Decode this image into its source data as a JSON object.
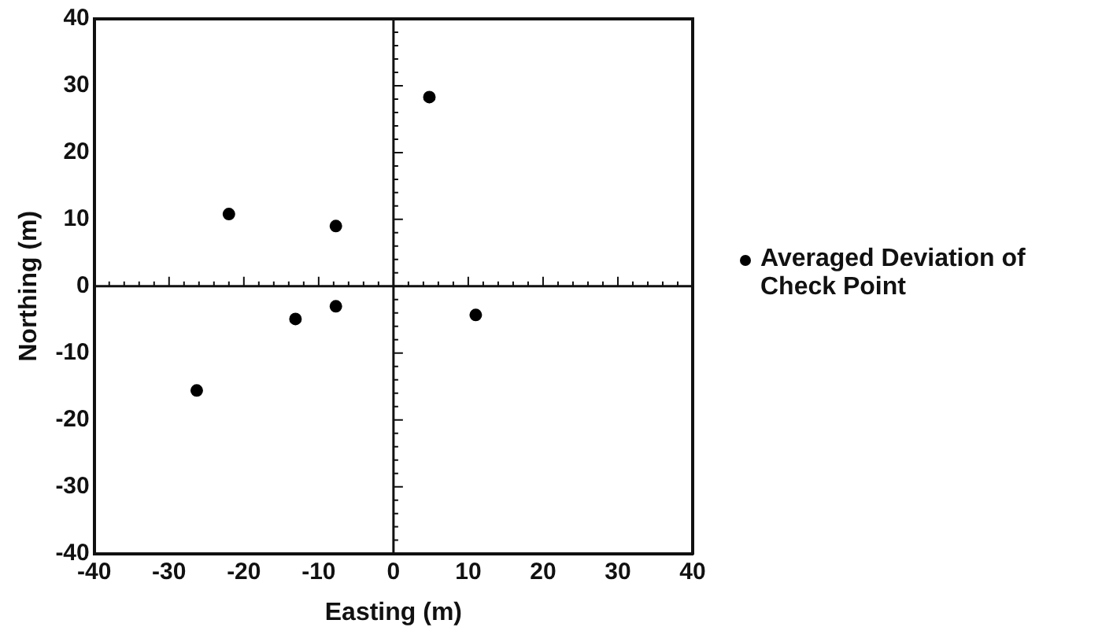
{
  "chart_data": {
    "type": "scatter",
    "xlabel": "Easting (m)",
    "ylabel": "Northing (m)",
    "xlim": [
      -40,
      40
    ],
    "ylim": [
      -40,
      40
    ],
    "xticks": [
      -40,
      -30,
      -20,
      -10,
      0,
      10,
      20,
      30,
      40
    ],
    "yticks": [
      -40,
      -30,
      -20,
      -10,
      0,
      10,
      20,
      30,
      40
    ],
    "marker": "circle",
    "legend": "right",
    "series": [
      {
        "name": "Averaged Deviation of Check Point",
        "color": "#000000",
        "x": [
          4.8,
          -22,
          -7.7,
          -13.1,
          -7.7,
          11,
          -26.3
        ],
        "values": [
          28.3,
          10.8,
          9,
          -4.9,
          -3,
          -4.3,
          -15.6
        ]
      }
    ]
  }
}
